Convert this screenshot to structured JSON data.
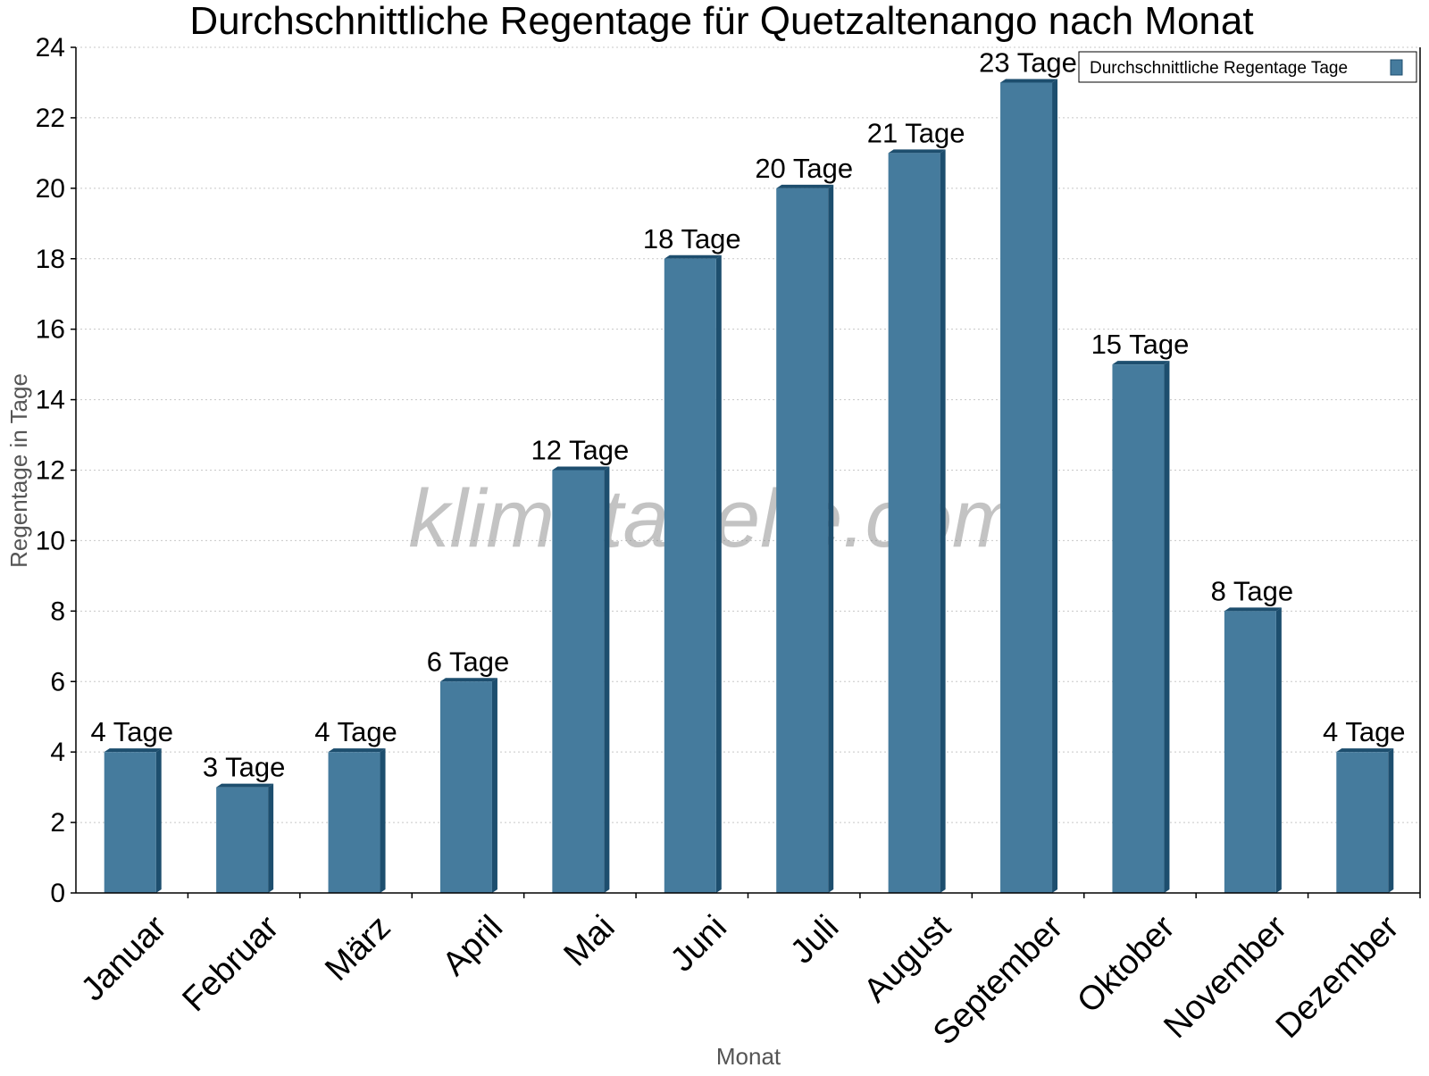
{
  "chart_data": {
    "type": "bar",
    "title": "Durchschnittliche Regentage für Quetzaltenango nach Monat",
    "xlabel": "Monat",
    "ylabel": "Regentage in Tage",
    "ylim": [
      0,
      24
    ],
    "yticks": [
      0,
      2,
      4,
      6,
      8,
      10,
      12,
      14,
      16,
      18,
      20,
      22,
      24
    ],
    "grid": true,
    "legend_position": "top-right",
    "categories": [
      "Januar",
      "Februar",
      "März",
      "April",
      "Mai",
      "Juni",
      "Juli",
      "August",
      "September",
      "Oktober",
      "November",
      "Dezember"
    ],
    "series": [
      {
        "name": "Durchschnittliche Regentage Tage",
        "values": [
          4,
          3,
          4,
          6,
          12,
          18,
          20,
          21,
          23,
          15,
          8,
          4
        ],
        "data_labels": [
          "4 Tage",
          "3 Tage",
          "4 Tage",
          "6 Tage",
          "12 Tage",
          "18 Tage",
          "20 Tage",
          "21 Tage",
          "23 Tage",
          "15 Tage",
          "8 Tage",
          "4 Tage"
        ],
        "color": "#457b9d",
        "side_color": "#1d4e6e"
      }
    ],
    "watermark": "klimatabelle.com"
  }
}
